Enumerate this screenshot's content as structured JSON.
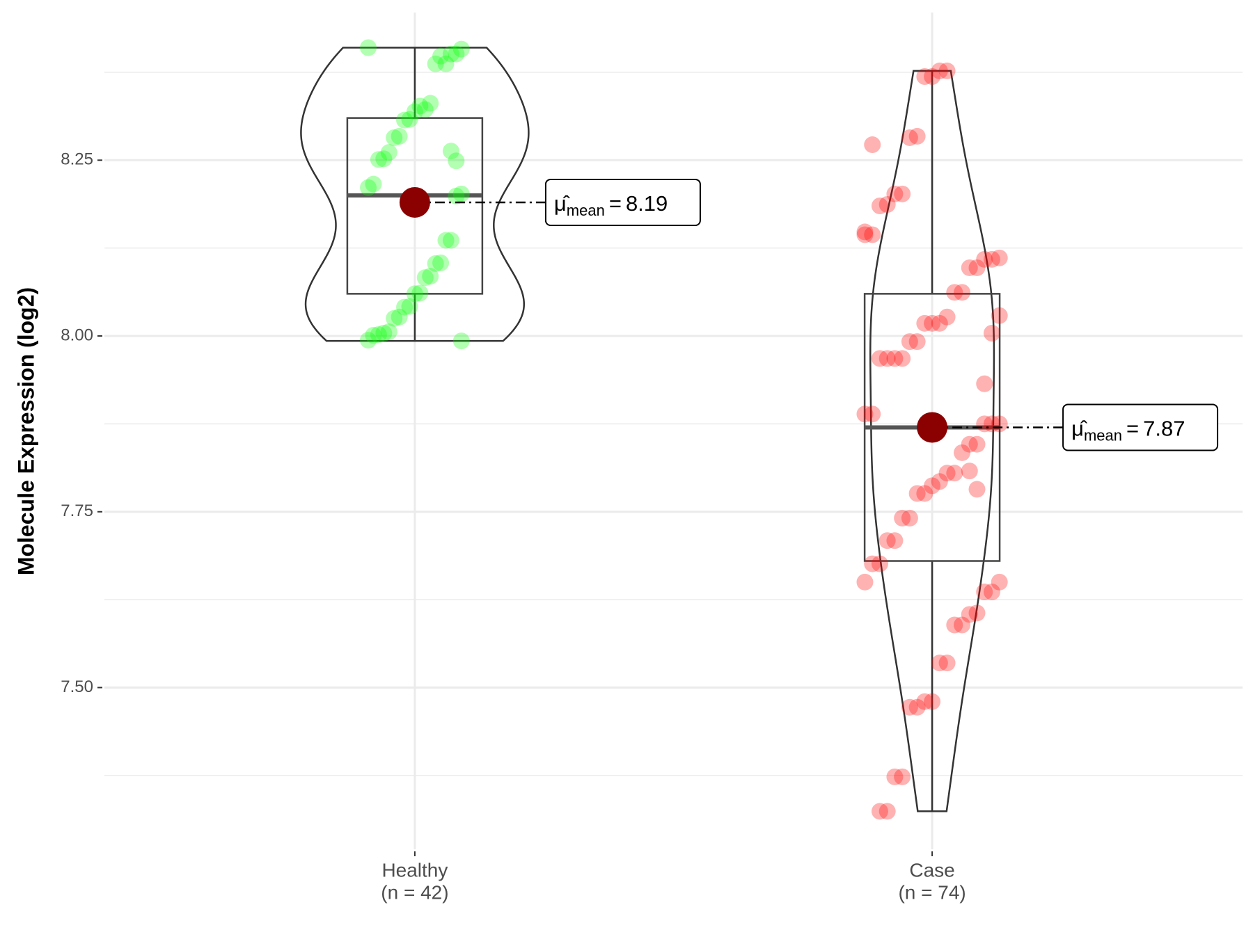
{
  "chart_data": {
    "type": "violin",
    "y_label": "Molecule Expression (log2)",
    "categories": [
      "Healthy",
      "Case"
    ],
    "count_labels": [
      "(n = 42)",
      "(n = 74)"
    ],
    "ylim": [
      7.27,
      8.46
    ],
    "yticks": [
      {
        "value": 7.5,
        "label": "7.50"
      },
      {
        "value": 7.75,
        "label": "7.75"
      },
      {
        "value": 8.0,
        "label": "8.00"
      },
      {
        "value": 8.25,
        "label": "8.25"
      }
    ],
    "minor_yticks": [
      7.375,
      7.625,
      7.875,
      8.125,
      8.375
    ],
    "grid": true,
    "mean_label": {
      "symbol": "μ̂",
      "subscript": "mean",
      "operator": "="
    },
    "mean_color": "#8b0000",
    "series": [
      {
        "name": "Healthy",
        "color": "#00ff00",
        "q1": 8.06,
        "median": 8.2,
        "q3": 8.31,
        "mean": 8.19,
        "values": [
          8.41,
          8.408,
          8.401,
          8.401,
          8.387,
          8.398,
          8.387,
          8.331,
          8.322,
          8.327,
          8.319,
          8.308,
          8.307,
          8.284,
          8.282,
          8.261,
          8.252,
          8.251,
          8.216,
          8.211,
          8.202,
          8.199,
          8.136,
          8.136,
          8.104,
          8.103,
          8.085,
          8.083,
          8.061,
          8.06,
          8.042,
          8.041,
          8.027,
          8.025,
          8.006,
          8.004,
          8.002,
          8.001,
          7.994,
          7.993,
          8.249,
          8.263
        ]
      },
      {
        "name": "Case",
        "color": "#ff0000",
        "q1": 7.68,
        "median": 7.87,
        "q3": 8.06,
        "mean": 7.87,
        "values": [
          8.377,
          8.377,
          8.369,
          8.369,
          8.284,
          8.282,
          8.202,
          8.202,
          8.187,
          8.185,
          8.144,
          8.144,
          8.111,
          8.109,
          8.109,
          8.097,
          8.097,
          8.062,
          8.062,
          8.027,
          8.018,
          8.018,
          8.018,
          7.992,
          7.992,
          7.968,
          7.968,
          7.968,
          7.968,
          7.889,
          7.889,
          7.875,
          7.875,
          7.875,
          7.846,
          7.846,
          7.834,
          7.805,
          7.805,
          7.793,
          7.787,
          7.776,
          7.776,
          7.741,
          7.741,
          7.709,
          7.709,
          7.676,
          7.676,
          7.65,
          7.65,
          7.636,
          7.636,
          7.606,
          7.604,
          7.589,
          7.589,
          7.535,
          7.535,
          7.48,
          7.48,
          7.472,
          7.472,
          7.373,
          7.373,
          7.324,
          7.324,
          8.272,
          8.148,
          8.029,
          8.004,
          7.932,
          7.782,
          7.808
        ]
      }
    ]
  }
}
